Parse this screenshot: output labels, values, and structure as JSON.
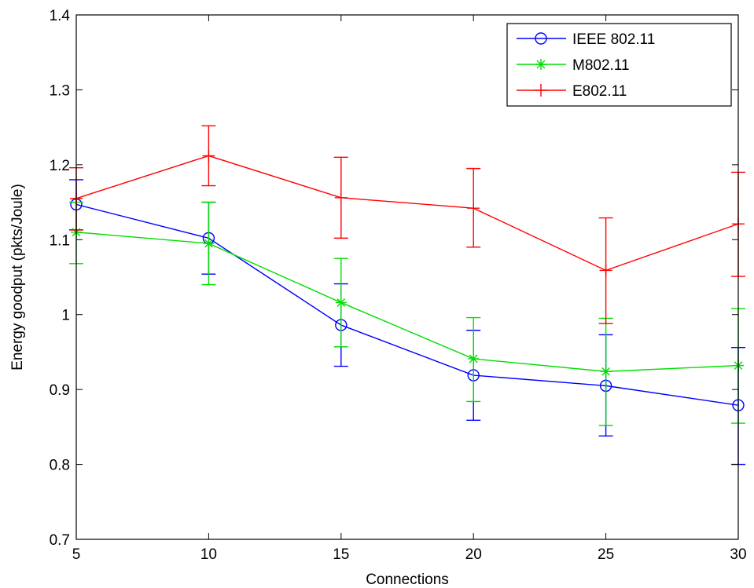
{
  "chart_data": {
    "type": "line",
    "xlabel": "Connections",
    "ylabel": "Energy goodput (pkts/Joule)",
    "xlim": [
      5,
      30
    ],
    "ylim": [
      0.7,
      1.4
    ],
    "xticks": [
      5,
      10,
      15,
      20,
      25,
      30
    ],
    "yticks": [
      0.7,
      0.8,
      0.9,
      1.0,
      1.1,
      1.2,
      1.3,
      1.4
    ],
    "xtick_labels": [
      "5",
      "10",
      "15",
      "20",
      "25",
      "30"
    ],
    "ytick_labels": [
      "0.7",
      "0.8",
      "0.9",
      "1",
      "1.1",
      "1.2",
      "1.3",
      "1.4"
    ],
    "grid": false,
    "legend_position": "top-right",
    "x": [
      5,
      10,
      15,
      20,
      25,
      30
    ],
    "series": [
      {
        "name": "IEEE 802.11",
        "color": "#0000ff",
        "marker": "circle",
        "values": [
          1.147,
          1.102,
          0.986,
          0.919,
          0.905,
          0.879
        ],
        "err_low": [
          1.113,
          1.054,
          0.931,
          0.859,
          0.838,
          0.8
        ],
        "err_high": [
          1.18,
          1.15,
          1.041,
          0.979,
          0.973,
          0.956
        ]
      },
      {
        "name": "M802.11",
        "color": "#00dd00",
        "marker": "asterisk",
        "values": [
          1.11,
          1.095,
          1.016,
          0.941,
          0.924,
          0.932
        ],
        "err_low": [
          1.068,
          1.04,
          0.957,
          0.884,
          0.852,
          0.855
        ],
        "err_high": [
          1.15,
          1.15,
          1.075,
          0.996,
          0.995,
          1.008
        ]
      },
      {
        "name": "E802.11",
        "color": "#ff0000",
        "marker": "plus",
        "values": [
          1.155,
          1.212,
          1.156,
          1.142,
          1.059,
          1.121
        ],
        "err_low": [
          1.113,
          1.172,
          1.102,
          1.09,
          0.988,
          1.051
        ],
        "err_high": [
          1.196,
          1.252,
          1.21,
          1.195,
          1.129,
          1.19
        ]
      }
    ]
  }
}
